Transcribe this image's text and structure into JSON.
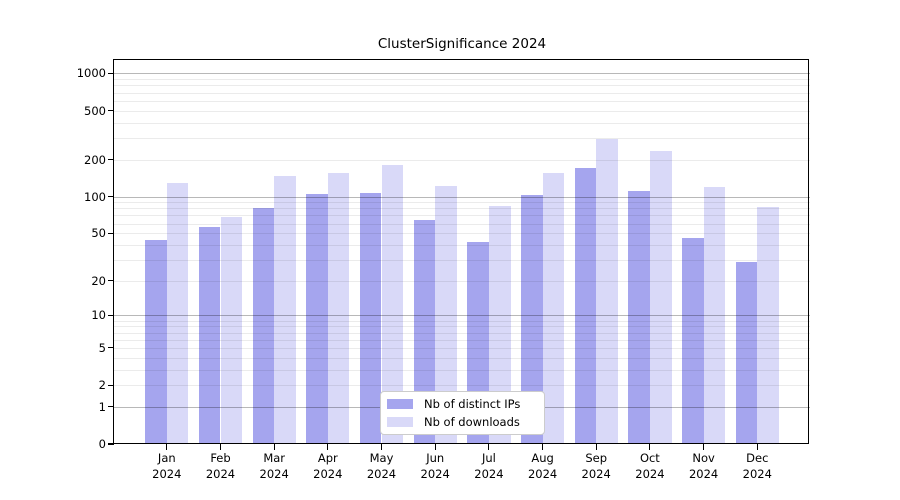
{
  "chart_data": {
    "type": "bar",
    "title": "ClusterSignificance 2024",
    "year": "2024",
    "categories": [
      "Jan",
      "Feb",
      "Mar",
      "Apr",
      "May",
      "Jun",
      "Jul",
      "Aug",
      "Sep",
      "Oct",
      "Nov",
      "Dec"
    ],
    "series": [
      {
        "name": "Nb of distinct IPs",
        "color": "#a5a5ee",
        "values": [
          44,
          56,
          81,
          104,
          106,
          64,
          42,
          102,
          171,
          110,
          46,
          29
        ]
      },
      {
        "name": "Nb of downloads",
        "color": "#d9d9f8",
        "values": [
          130,
          68,
          148,
          156,
          182,
          123,
          84,
          156,
          293,
          234,
          120,
          82
        ]
      }
    ],
    "yscale": "log10(1+x)",
    "yticks": [
      0,
      1,
      2,
      5,
      10,
      20,
      50,
      100,
      200,
      500,
      1000
    ],
    "ylim": [
      0,
      1280
    ],
    "xlabel": "",
    "ylabel": "",
    "grid": "horizontal",
    "legend_position": "inside-bottom-center"
  }
}
